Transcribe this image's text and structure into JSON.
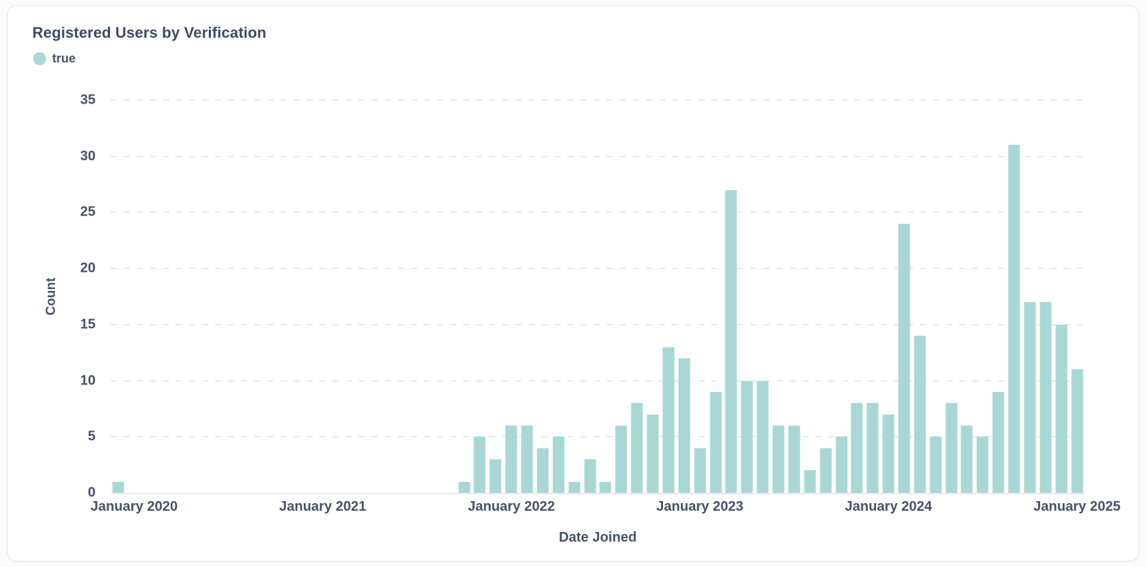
{
  "chart_data": {
    "type": "bar",
    "title": "Registered Users by Verification",
    "xlabel": "Date Joined",
    "ylabel": "Count",
    "ylim": [
      0,
      35
    ],
    "yticks": [
      0,
      5,
      10,
      15,
      20,
      25,
      30,
      35
    ],
    "grid": "horizontal-dashed",
    "legend": [
      {
        "label": "true",
        "color": "#a9d8d4"
      }
    ],
    "bar_color": "#a9d8d4",
    "x_domain_months": [
      "2019-12",
      "2025-01"
    ],
    "x_ticks": [
      {
        "label": "January 2020",
        "month": "2020-01"
      },
      {
        "label": "January 2021",
        "month": "2021-01"
      },
      {
        "label": "January 2022",
        "month": "2022-01"
      },
      {
        "label": "January 2023",
        "month": "2023-01"
      },
      {
        "label": "January 2024",
        "month": "2024-01"
      },
      {
        "label": "January 2025",
        "month": "2025-01"
      }
    ],
    "series": [
      {
        "name": "true",
        "points": [
          {
            "month": "2019-12",
            "count": 1
          },
          {
            "month": "2021-10",
            "count": 1
          },
          {
            "month": "2021-11",
            "count": 5
          },
          {
            "month": "2021-12",
            "count": 3
          },
          {
            "month": "2022-01",
            "count": 6
          },
          {
            "month": "2022-02",
            "count": 6
          },
          {
            "month": "2022-03",
            "count": 4
          },
          {
            "month": "2022-04",
            "count": 5
          },
          {
            "month": "2022-05",
            "count": 1
          },
          {
            "month": "2022-06",
            "count": 3
          },
          {
            "month": "2022-07",
            "count": 1
          },
          {
            "month": "2022-08",
            "count": 6
          },
          {
            "month": "2022-09",
            "count": 8
          },
          {
            "month": "2022-10",
            "count": 7
          },
          {
            "month": "2022-11",
            "count": 13
          },
          {
            "month": "2022-12",
            "count": 12
          },
          {
            "month": "2023-01",
            "count": 4
          },
          {
            "month": "2023-02",
            "count": 9
          },
          {
            "month": "2023-03",
            "count": 27
          },
          {
            "month": "2023-04",
            "count": 10
          },
          {
            "month": "2023-05",
            "count": 10
          },
          {
            "month": "2023-06",
            "count": 6
          },
          {
            "month": "2023-07",
            "count": 6
          },
          {
            "month": "2023-08",
            "count": 2
          },
          {
            "month": "2023-09",
            "count": 4
          },
          {
            "month": "2023-10",
            "count": 5
          },
          {
            "month": "2023-11",
            "count": 8
          },
          {
            "month": "2023-12",
            "count": 8
          },
          {
            "month": "2024-01",
            "count": 7
          },
          {
            "month": "2024-02",
            "count": 24
          },
          {
            "month": "2024-03",
            "count": 14
          },
          {
            "month": "2024-04",
            "count": 5
          },
          {
            "month": "2024-05",
            "count": 8
          },
          {
            "month": "2024-06",
            "count": 6
          },
          {
            "month": "2024-07",
            "count": 5
          },
          {
            "month": "2024-08",
            "count": 9
          },
          {
            "month": "2024-09",
            "count": 31
          },
          {
            "month": "2024-10",
            "count": 17
          },
          {
            "month": "2024-11",
            "count": 17
          },
          {
            "month": "2024-12",
            "count": 15
          },
          {
            "month": "2025-01",
            "count": 11
          }
        ]
      }
    ]
  }
}
